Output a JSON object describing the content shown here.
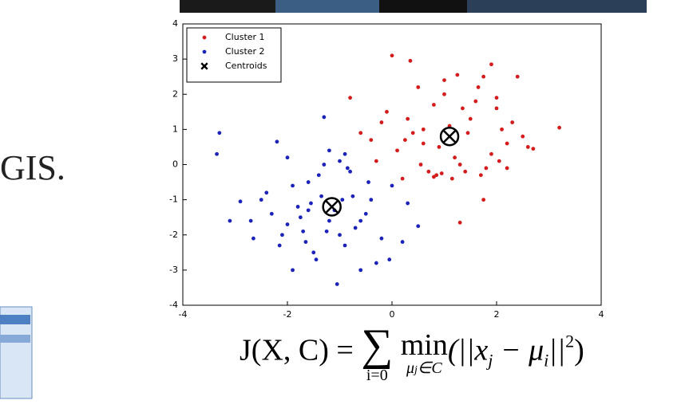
{
  "slide_text": "GIS.",
  "chart_data": {
    "type": "scatter",
    "xlim": [
      -4,
      4
    ],
    "ylim": [
      -4,
      4
    ],
    "xticks": [
      -4,
      -2,
      0,
      2,
      4
    ],
    "yticks": [
      -4,
      -3,
      -2,
      -1,
      0,
      1,
      2,
      3,
      4
    ],
    "grid": false,
    "legend": "northwest",
    "series": [
      {
        "name": "Cluster 1",
        "color": "#d41c1c",
        "marker": "dot",
        "x": [
          0,
          0.35,
          1.9,
          1.75,
          2.4,
          1.25,
          3.2,
          2.7,
          -0.8,
          -0.6,
          1.3,
          1.75,
          0.85,
          0.5,
          0.8,
          1.0,
          1.5,
          1.6,
          2.0,
          2.1,
          2.2,
          1.2,
          1.4,
          0.6,
          0.3,
          0.1,
          -0.3,
          -0.1,
          0.7,
          0.9,
          1.1,
          1.3,
          1.8,
          2.3,
          2.5,
          2.6,
          1.0,
          0.2,
          -0.4,
          0.4,
          1.7,
          1.9,
          2.0,
          0.8,
          0.95,
          1.15,
          0.55,
          0.25,
          -0.2,
          1.45,
          1.65,
          2.2,
          0.6,
          1.35,
          2.05
        ],
        "values": [
          3.1,
          2.95,
          2.85,
          2.5,
          2.5,
          2.55,
          1.05,
          0.45,
          1.9,
          0.9,
          -1.65,
          -1.0,
          -0.3,
          2.2,
          1.7,
          2.0,
          1.3,
          1.8,
          1.9,
          1.0,
          0.6,
          0.2,
          -0.2,
          0.6,
          1.3,
          0.4,
          0.1,
          1.5,
          -0.2,
          0.5,
          1.1,
          0.0,
          -0.1,
          1.2,
          0.8,
          0.5,
          2.4,
          -0.4,
          0.7,
          0.9,
          -0.3,
          0.3,
          1.6,
          -0.35,
          -0.25,
          -0.4,
          0.0,
          0.7,
          1.2,
          0.9,
          2.2,
          -0.1,
          1.0,
          1.6,
          0.1
        ]
      },
      {
        "name": "Cluster 2",
        "color": "#1c23b8",
        "marker": "dot",
        "x": [
          -1.3,
          -3.3,
          -3.35,
          -1.9,
          -1.05,
          -2.65,
          -3.1,
          -2.9,
          0.5,
          0.2,
          -0.05,
          -2.4,
          -2.2,
          -2.0,
          -1.8,
          -1.6,
          -1.4,
          -1.2,
          -1.0,
          -0.8,
          -0.6,
          -0.4,
          -0.2,
          0.0,
          -1.5,
          -1.7,
          -0.9,
          -1.1,
          -0.7,
          -0.5,
          -2.3,
          -2.1,
          -1.9,
          -1.3,
          -0.95,
          -0.75,
          -1.45,
          -1.65,
          -2.5,
          -2.0,
          -1.2,
          -0.85,
          -0.3,
          -1.55,
          -1.0,
          -0.6,
          -1.35,
          -2.15,
          -1.75,
          -0.45,
          -1.25,
          -0.9,
          0.3,
          -1.6,
          -2.7
        ],
        "values": [
          1.35,
          0.9,
          0.3,
          -3.0,
          -3.4,
          -2.1,
          -1.6,
          -1.05,
          -1.75,
          -2.2,
          -2.7,
          -0.8,
          0.65,
          0.2,
          -1.2,
          -0.5,
          -0.3,
          0.4,
          0.1,
          -0.2,
          -1.6,
          -1.0,
          -2.1,
          -0.6,
          -2.5,
          -1.9,
          -2.3,
          -1.3,
          -1.8,
          -1.4,
          -1.4,
          -2.0,
          -0.6,
          0.0,
          -1.0,
          -0.9,
          -2.7,
          -2.2,
          -1.0,
          -1.7,
          -1.6,
          -0.1,
          -2.8,
          -1.1,
          -2.0,
          -3.0,
          -0.9,
          -2.3,
          -1.5,
          -0.5,
          -1.9,
          0.3,
          -1.1,
          -1.3,
          -1.6
        ]
      },
      {
        "name": "Centroids",
        "color": "#000000",
        "marker": "x",
        "x": [
          1.1,
          -1.15
        ],
        "values": [
          0.8,
          -1.2
        ]
      }
    ]
  },
  "formula": {
    "lhs": "J(X, C) = ",
    "sum": "∑",
    "sum_lower": "i=0",
    "min": "min",
    "min_lower": "μ",
    "min_lower_sub": "j",
    "min_lower_rest": "∈C",
    "open": "(||x",
    "x_sub": "j",
    "minus": " − μ",
    "mu_sub": "i",
    "close_norm": "||",
    "power": "2",
    "close": ")"
  }
}
